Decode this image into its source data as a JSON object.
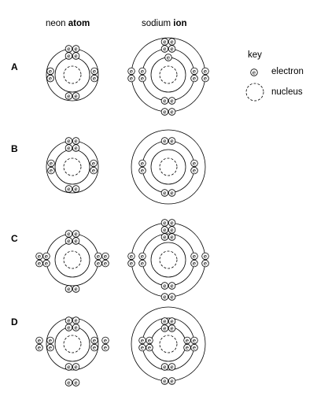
{
  "headers": {
    "neon_prefix": "neon ",
    "neon_bold": "atom",
    "sodium_prefix": "sodium ",
    "sodium_bold": "ion"
  },
  "rows": [
    {
      "label": "A",
      "neon": {
        "shells": [
          2,
          8
        ],
        "electron_layout": "pairs"
      },
      "sodium": {
        "shells": [
          2,
          8,
          1
        ],
        "electron_layout": "pairs"
      }
    },
    {
      "label": "B",
      "neon": {
        "shells": [
          2,
          8
        ],
        "electron_layout": "pairs"
      },
      "sodium": {
        "shells": [
          2,
          8,
          0
        ],
        "electron_layout": "pairs"
      }
    },
    {
      "label": "C",
      "neon": {
        "shells": [
          2,
          8
        ],
        "electron_layout": "pairs"
      },
      "sodium": {
        "shells": [
          2,
          8,
          1
        ],
        "electron_layout": "pairs"
      }
    },
    {
      "label": "D",
      "neon": {
        "shells": [
          2,
          8
        ],
        "electron_layout": "pairs"
      },
      "sodium": {
        "shells": [
          2,
          8,
          0
        ],
        "electron_layout": "pairs"
      }
    }
  ],
  "electron_symbol": "e",
  "key": {
    "title": "key",
    "electron_label": "electron",
    "nucleus_label": "nucleus"
  }
}
